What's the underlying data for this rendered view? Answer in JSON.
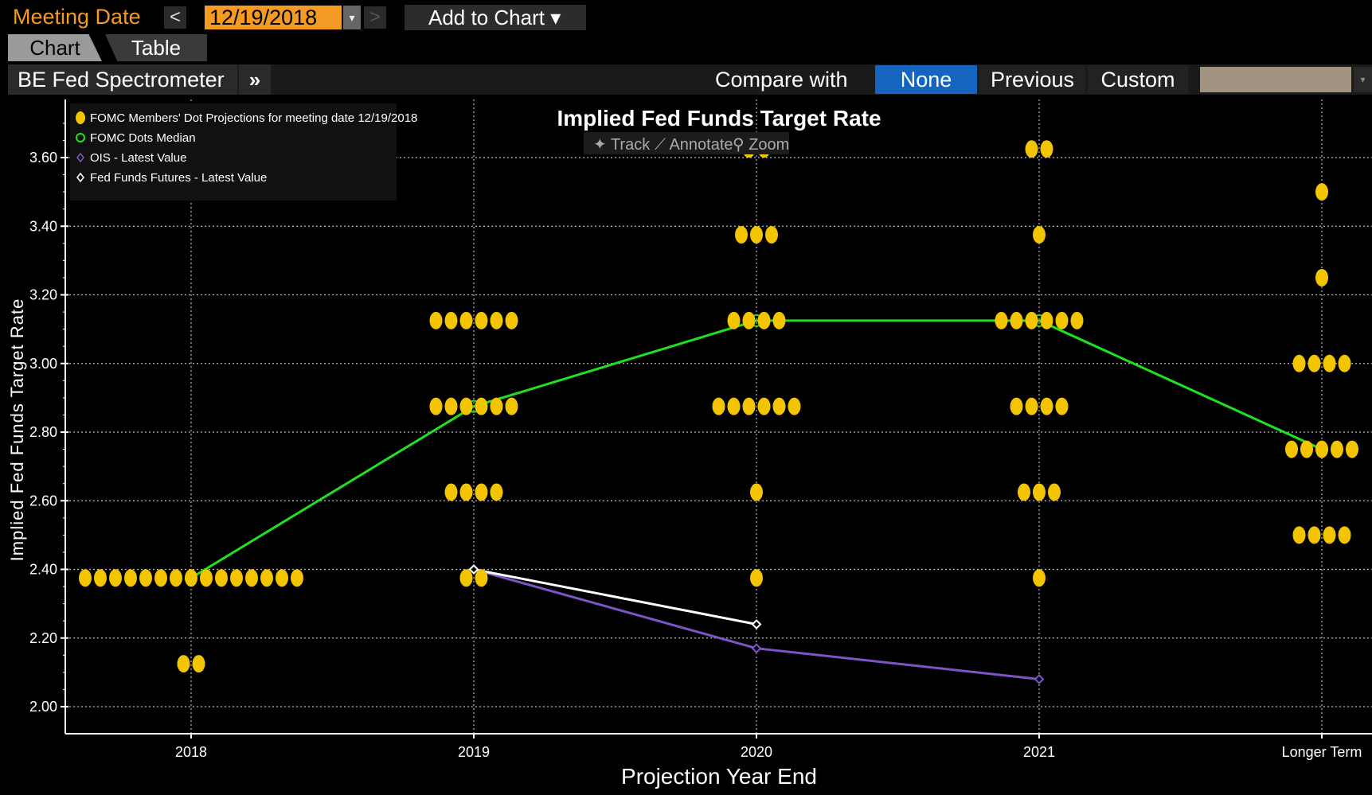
{
  "topbar": {
    "meeting_label": "Meeting Date",
    "prev_glyph": "<",
    "date_value": "12/19/2018",
    "dropdown_glyph": "▾",
    "next_glyph": ">",
    "add_to_chart": "Add to Chart ▾"
  },
  "tabs": [
    "Chart",
    "Table"
  ],
  "toolbar": {
    "title": "BE Fed Spectrometer",
    "expand_glyph": "»",
    "compare_label": "Compare with",
    "compare_options": [
      "None",
      "Previous",
      "Custom"
    ],
    "selected_compare": "None"
  },
  "chart_tools": [
    "Track",
    "Annotate",
    "Zoom"
  ],
  "colors": {
    "accent": "#f59a23",
    "selected": "#1565c0",
    "dots": "#f2c500",
    "median": "#1fe21f",
    "ois": "#7b55c7",
    "futures": "#ffffff"
  },
  "chart_data": {
    "type": "scatter",
    "title": "Implied Fed Funds Target Rate",
    "xlabel": "Projection Year End",
    "ylabel": "Implied Fed Funds Target Rate",
    "categories": [
      "2018",
      "2019",
      "2020",
      "2021",
      "Longer Term"
    ],
    "ylim": [
      1.95,
      3.75
    ],
    "yticks": [
      2.0,
      2.2,
      2.4,
      2.6,
      2.8,
      3.0,
      3.2,
      3.4,
      3.6
    ],
    "ytick_labels": [
      "2.00",
      "2.20",
      "2.40",
      "2.60",
      "2.80",
      "3.00",
      "3.20",
      "3.40",
      "3.60"
    ],
    "grid": true,
    "legend_position": "top-left",
    "legend": [
      "FOMC Members' Dot Projections for meeting date 12/19/2018",
      "FOMC Dots Median",
      "OIS - Latest Value",
      "Fed Funds Futures - Latest Value"
    ],
    "dots": [
      {
        "x": "2018",
        "points": [
          {
            "y": 2.375,
            "count": 15
          },
          {
            "y": 2.125,
            "count": 2
          }
        ]
      },
      {
        "x": "2019",
        "points": [
          {
            "y": 3.125,
            "count": 6
          },
          {
            "y": 2.875,
            "count": 6
          },
          {
            "y": 2.625,
            "count": 4
          },
          {
            "y": 2.375,
            "count": 2
          }
        ]
      },
      {
        "x": "2020",
        "points": [
          {
            "y": 3.625,
            "count": 2
          },
          {
            "y": 3.375,
            "count": 3
          },
          {
            "y": 3.125,
            "count": 4
          },
          {
            "y": 2.875,
            "count": 6
          },
          {
            "y": 2.625,
            "count": 1
          },
          {
            "y": 2.375,
            "count": 1
          }
        ]
      },
      {
        "x": "2021",
        "points": [
          {
            "y": 3.625,
            "count": 2
          },
          {
            "y": 3.375,
            "count": 1
          },
          {
            "y": 3.125,
            "count": 6
          },
          {
            "y": 2.875,
            "count": 4
          },
          {
            "y": 2.625,
            "count": 3
          },
          {
            "y": 2.375,
            "count": 1
          }
        ]
      },
      {
        "x": "Longer Term",
        "points": [
          {
            "y": 3.5,
            "count": 1
          },
          {
            "y": 3.25,
            "count": 1
          },
          {
            "y": 3.0,
            "count": 4
          },
          {
            "y": 2.75,
            "count": 5
          },
          {
            "y": 2.5,
            "count": 4
          }
        ]
      }
    ],
    "series": [
      {
        "name": "FOMC Dots Median",
        "values": [
          2.375,
          2.875,
          3.125,
          3.125,
          2.75
        ]
      },
      {
        "name": "OIS - Latest Value",
        "values": [
          null,
          2.4,
          2.17,
          2.08,
          null
        ]
      },
      {
        "name": "Fed Funds Futures - Latest Value",
        "values": [
          null,
          2.4,
          2.24,
          null,
          null
        ]
      }
    ]
  }
}
